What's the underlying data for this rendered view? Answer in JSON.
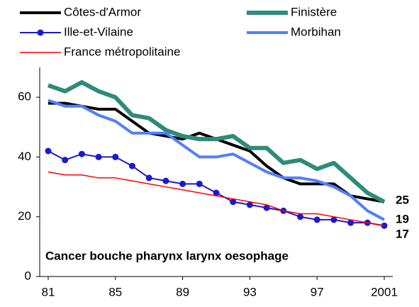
{
  "chart_data": {
    "type": "line",
    "annotation": "Cancer bouche pharynx larynx oesophage",
    "end_labels": [
      "25",
      "19",
      "17"
    ],
    "categories": [
      "81",
      null,
      null,
      null,
      "85",
      null,
      null,
      null,
      "89",
      null,
      null,
      null,
      "93",
      null,
      null,
      null,
      "97",
      null,
      null,
      null,
      "2001"
    ],
    "ylim": [
      0,
      70
    ],
    "yticks": [
      0,
      20,
      40,
      60
    ],
    "series": [
      {
        "name": "Côtes-d'Armor",
        "color": "#000000",
        "width": 4,
        "values": [
          58,
          58,
          57,
          56,
          56,
          52,
          48,
          47,
          46,
          48,
          46,
          44,
          42,
          37,
          33,
          31,
          31,
          31,
          27,
          26,
          25
        ]
      },
      {
        "name": "Finistère",
        "color": "#2e8b7a",
        "width": 6,
        "values": [
          64,
          62,
          65,
          62,
          60,
          54,
          53,
          49,
          47,
          46,
          46,
          47,
          43,
          43,
          38,
          39,
          36,
          38,
          33,
          28,
          25
        ]
      },
      {
        "name": "Ille-et-Vilaine",
        "color": "#1a1acc",
        "width": 2,
        "marker": "circle",
        "values": [
          42,
          39,
          41,
          40,
          40,
          37,
          33,
          32,
          31,
          31,
          28,
          25,
          24,
          23,
          22,
          20,
          19,
          19,
          18,
          18,
          17
        ]
      },
      {
        "name": "Morbihan",
        "color": "#4f7fff",
        "width": 4,
        "values": [
          59,
          57,
          57,
          54,
          52,
          48,
          48,
          48,
          44,
          40,
          40,
          41,
          38,
          35,
          33,
          33,
          32,
          30,
          27,
          22,
          19
        ]
      },
      {
        "name": "France métropolitaine",
        "color": "#ff0000",
        "width": 1.5,
        "values": [
          35,
          34,
          34,
          33,
          33,
          32,
          31,
          30,
          29,
          28,
          27,
          26,
          25,
          24,
          22,
          21,
          21,
          20,
          19,
          18,
          17
        ]
      }
    ]
  }
}
